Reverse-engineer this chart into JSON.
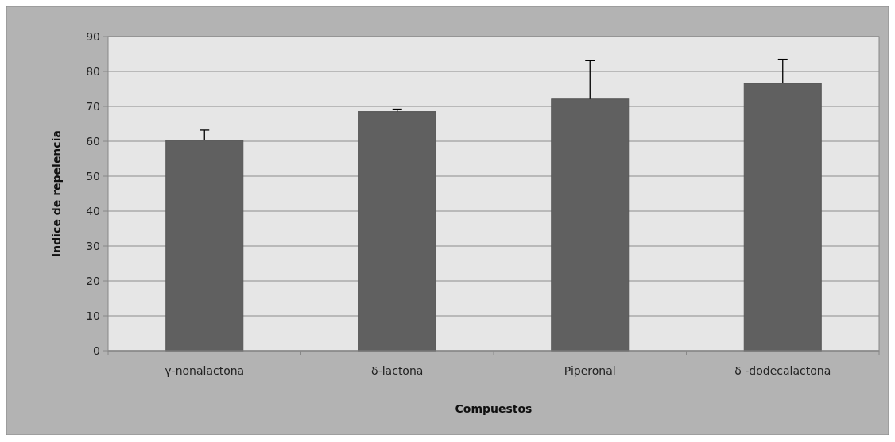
{
  "chart_data": {
    "type": "bar",
    "xlabel": "Compuestos",
    "ylabel": "Indice de repelencia",
    "categories": [
      "γ-nonalactona",
      "δ-lactona",
      "Piperonal",
      "δ -dodecalactona"
    ],
    "values": [
      60.3,
      68.5,
      72.1,
      76.6
    ],
    "errors": [
      [
        60.3,
        63.2
      ],
      [
        68.5,
        69.2
      ],
      [
        72.1,
        83.1
      ],
      [
        76.6,
        83.5
      ]
    ],
    "color": "#606060",
    "ylim": [
      0,
      90
    ],
    "yticks": [
      0,
      10,
      20,
      30,
      40,
      50,
      60,
      70,
      80,
      90
    ],
    "grid": "y"
  }
}
